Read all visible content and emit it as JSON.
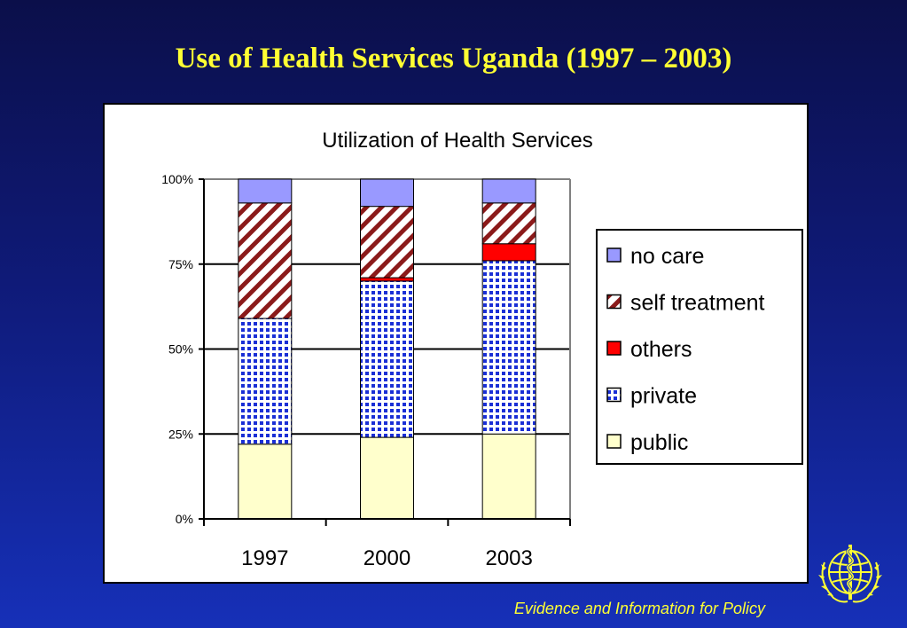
{
  "slide": {
    "title": "Use of Health Services Uganda (1997 – 2003)",
    "footer": "Evidence and Information for Policy",
    "emblem_icon": "who-emblem-icon"
  },
  "colors": {
    "background_top": "#0b0f4a",
    "background_bottom": "#1630b8",
    "title": "#ffff33",
    "footer": "#ffff33"
  },
  "chart_data": {
    "type": "bar",
    "stacked": true,
    "percent": true,
    "title": "Utilization of Health Services",
    "xlabel": "",
    "ylabel": "",
    "categories": [
      "1997",
      "2000",
      "2003"
    ],
    "yticks": [
      "0%",
      "25%",
      "50%",
      "75%",
      "100%"
    ],
    "ylim": [
      0,
      100
    ],
    "grid": true,
    "legend_position": "right",
    "series": [
      {
        "name": "public",
        "values": [
          22,
          24,
          25
        ],
        "color": "#ffffcc",
        "pattern": "solid"
      },
      {
        "name": "private",
        "values": [
          37,
          46,
          51
        ],
        "color": "#1a2fd6",
        "pattern": "dots"
      },
      {
        "name": "others",
        "values": [
          0,
          1,
          5
        ],
        "color": "#ff0000",
        "pattern": "solid"
      },
      {
        "name": "self treatment",
        "values": [
          34,
          21,
          12
        ],
        "color": "#8b1a1a",
        "pattern": "diagonal"
      },
      {
        "name": "no care",
        "values": [
          7,
          8,
          7
        ],
        "color": "#9999ff",
        "pattern": "solid"
      }
    ],
    "legend_order": [
      "no care",
      "self treatment",
      "others",
      "private",
      "public"
    ]
  }
}
